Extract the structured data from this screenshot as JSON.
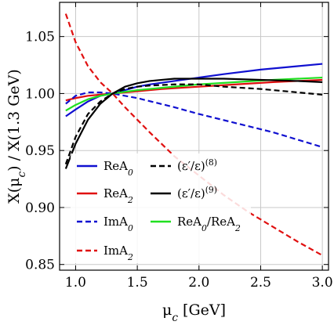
{
  "chart_data": {
    "type": "line",
    "title": "",
    "xlabel": "μ_c [GeV]",
    "ylabel": "X(μ_c) / X(1.3 GeV)",
    "xlim": [
      0.87,
      3.05
    ],
    "ylim": [
      0.845,
      1.08
    ],
    "xticks": [
      1.0,
      1.5,
      2.0,
      2.5,
      3.0
    ],
    "xtick_labels": [
      "1.0",
      "1.5",
      "2.0",
      "2.5",
      "3.0"
    ],
    "yticks": [
      0.85,
      0.9,
      0.95,
      1.0,
      1.05
    ],
    "ytick_labels": [
      "0.85",
      "0.90",
      "0.95",
      "1.00",
      "1.05"
    ],
    "grid": true,
    "legend_position": "lower-left",
    "series": [
      {
        "name": "ReA_0",
        "color": "#1010d0",
        "dash": "solid",
        "x": [
          0.92,
          1.0,
          1.1,
          1.2,
          1.3,
          1.4,
          1.5,
          1.6,
          1.8,
          2.0,
          2.2,
          2.5,
          2.8,
          3.0
        ],
        "y": [
          0.98,
          0.986,
          0.993,
          0.998,
          1.0,
          1.003,
          1.006,
          1.008,
          1.011,
          1.014,
          1.017,
          1.021,
          1.024,
          1.026
        ]
      },
      {
        "name": "ReA_2",
        "color": "#e01010",
        "dash": "solid",
        "x": [
          0.92,
          1.0,
          1.1,
          1.2,
          1.3,
          1.4,
          1.5,
          1.7,
          2.0,
          2.3,
          2.6,
          3.0
        ],
        "y": [
          0.994,
          0.996,
          0.998,
          0.999,
          1.0,
          1.001,
          1.002,
          1.004,
          1.006,
          1.008,
          1.01,
          1.012
        ]
      },
      {
        "name": "ImA_0",
        "color": "#1010d0",
        "dash": "dashed",
        "x": [
          0.92,
          1.0,
          1.1,
          1.2,
          1.3,
          1.5,
          1.8,
          2.0,
          2.3,
          2.6,
          3.0
        ],
        "y": [
          0.991,
          0.998,
          1.001,
          1.001,
          1.0,
          0.996,
          0.988,
          0.982,
          0.974,
          0.966,
          0.953
        ]
      },
      {
        "name": "ImA_2",
        "color": "#e01010",
        "dash": "dashed",
        "x": [
          0.92,
          1.0,
          1.1,
          1.2,
          1.3,
          1.4,
          1.6,
          1.8,
          2.0,
          2.2,
          2.4,
          2.6,
          2.8,
          3.0
        ],
        "y": [
          1.07,
          1.045,
          1.024,
          1.01,
          1.0,
          0.988,
          0.966,
          0.945,
          0.928,
          0.911,
          0.896,
          0.883,
          0.87,
          0.858
        ]
      },
      {
        "name": "(ε′/ε)^(8)",
        "color": "#000000",
        "dash": "dashed",
        "x": [
          0.92,
          1.0,
          1.1,
          1.2,
          1.3,
          1.4,
          1.5,
          1.6,
          1.8,
          2.0,
          2.2,
          2.5,
          2.8,
          3.0
        ],
        "y": [
          0.938,
          0.962,
          0.982,
          0.993,
          1.0,
          1.004,
          1.006,
          1.007,
          1.008,
          1.008,
          1.006,
          1.004,
          1.001,
          0.999
        ]
      },
      {
        "name": "(ε′/ε)^(9)",
        "color": "#000000",
        "dash": "solid",
        "x": [
          0.92,
          1.0,
          1.1,
          1.2,
          1.3,
          1.4,
          1.5,
          1.6,
          1.7,
          1.8,
          2.0,
          2.2,
          2.5,
          2.8,
          3.0
        ],
        "y": [
          0.934,
          0.956,
          0.977,
          0.991,
          1.0,
          1.006,
          1.009,
          1.011,
          1.012,
          1.013,
          1.013,
          1.013,
          1.012,
          1.011,
          1.01
        ]
      },
      {
        "name": "ReA_0/ReA_2",
        "color": "#20e020",
        "dash": "solid",
        "x": [
          0.92,
          1.0,
          1.1,
          1.2,
          1.3,
          1.5,
          1.7,
          2.0,
          2.3,
          2.6,
          3.0
        ],
        "y": [
          0.985,
          0.99,
          0.995,
          0.998,
          1.0,
          1.003,
          1.005,
          1.008,
          1.01,
          1.012,
          1.014
        ]
      }
    ],
    "legend_columns": [
      [
        "ReA_0",
        "ReA_2",
        "ImA_0",
        "ImA_2"
      ],
      [
        "(ε′/ε)^(8)",
        "(ε′/ε)^(9)",
        "ReA_0/ReA_2"
      ]
    ]
  }
}
